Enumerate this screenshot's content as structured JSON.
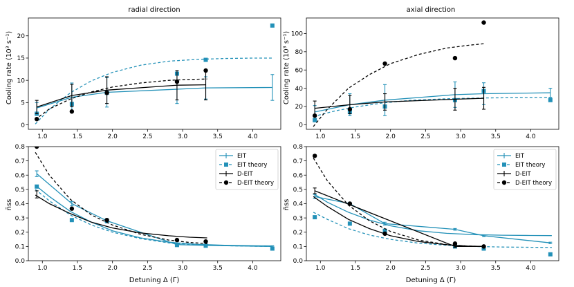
{
  "colors": {
    "eit": "#2391b8",
    "deit": "#000000"
  },
  "chart_data": [
    {
      "type": "line",
      "title": "radial direction",
      "xlabel": "",
      "ylabel": "Cooling rate (10³ s⁻¹)",
      "xlim": [
        0.8,
        4.4
      ],
      "ylim": [
        -1,
        24
      ],
      "xticks": [
        "1.0",
        "1.5",
        "2.0",
        "2.5",
        "3.0",
        "3.5",
        "4.0"
      ],
      "yticks": [
        "0",
        "5",
        "10",
        "15",
        "20"
      ],
      "series": [
        {
          "name": "EIT",
          "kind": "errorbar",
          "color": "eit",
          "linestyle": "solid",
          "x": [
            0.92,
            1.42,
            1.92,
            2.92,
            3.33,
            4.28
          ],
          "y": [
            3.8,
            6.2,
            7.3,
            8.0,
            8.3,
            8.4
          ],
          "err": [
            1.2,
            3.2,
            3.3,
            3.2,
            2.5,
            2.9
          ]
        },
        {
          "name": "EIT theory",
          "kind": "markers",
          "marker": "square",
          "color": "eit",
          "x": [
            0.92,
            1.42,
            1.92,
            2.92,
            3.33,
            4.28
          ],
          "y": [
            2.5,
            4.7,
            7.2,
            11.5,
            14.6,
            22.3
          ]
        },
        {
          "name": "EIT theory curve",
          "kind": "line",
          "color": "eit",
          "linestyle": "dashed",
          "x": [
            0.9,
            1.1,
            1.4,
            1.7,
            2.0,
            2.4,
            2.8,
            3.2,
            3.6,
            4.0,
            4.3
          ],
          "y": [
            0.2,
            3.5,
            7.2,
            9.9,
            11.8,
            13.4,
            14.3,
            14.7,
            14.9,
            15.0,
            15.0
          ]
        },
        {
          "name": "D-EIT",
          "kind": "errorbar",
          "color": "deit",
          "linestyle": "solid",
          "x": [
            0.92,
            1.42,
            1.92,
            2.92,
            3.33
          ],
          "y": [
            4.0,
            6.6,
            7.8,
            8.9,
            9.0
          ],
          "err": [
            1.5,
            2.5,
            3.0,
            3.3,
            3.4
          ]
        },
        {
          "name": "D-EIT theory",
          "kind": "markers",
          "marker": "circle",
          "color": "deit",
          "x": [
            0.92,
            1.42,
            1.92,
            2.92,
            3.33
          ],
          "y": [
            1.3,
            3.0,
            7.2,
            9.7,
            12.2
          ]
        },
        {
          "name": "D-EIT theory curve",
          "kind": "line",
          "color": "deit",
          "linestyle": "dashed",
          "x": [
            0.9,
            1.1,
            1.4,
            1.7,
            2.0,
            2.4,
            2.8,
            3.1,
            3.35
          ],
          "y": [
            1.2,
            3.6,
            5.8,
            7.4,
            8.5,
            9.4,
            10.0,
            10.2,
            10.3
          ]
        }
      ]
    },
    {
      "type": "line",
      "title": "axial direction",
      "xlabel": "",
      "ylabel": "Cooling rate (10³ s⁻¹)",
      "xlim": [
        0.8,
        4.4
      ],
      "ylim": [
        -5,
        117
      ],
      "xticks": [
        "1.0",
        "1.5",
        "2.0",
        "2.5",
        "3.0",
        "3.5",
        "4.0"
      ],
      "yticks": [
        "0",
        "20",
        "40",
        "60",
        "80",
        "100"
      ],
      "series": [
        {
          "name": "EIT",
          "kind": "errorbar",
          "color": "eit",
          "linestyle": "solid",
          "x": [
            0.92,
            1.42,
            1.92,
            2.92,
            3.33,
            4.28
          ],
          "y": [
            14.0,
            22.0,
            27.0,
            33.0,
            34.0,
            35.0
          ],
          "err": [
            7.0,
            12.0,
            17.0,
            14.0,
            12.0,
            5.0
          ]
        },
        {
          "name": "EIT theory",
          "kind": "markers",
          "marker": "square",
          "color": "eit",
          "x": [
            0.92,
            1.42,
            1.92,
            2.92,
            3.33,
            4.28
          ],
          "y": [
            5.0,
            14.0,
            20.0,
            27.0,
            37.0,
            27.0
          ]
        },
        {
          "name": "EIT theory curve",
          "kind": "line",
          "color": "eit",
          "linestyle": "dashed",
          "x": [
            0.9,
            1.2,
            1.5,
            1.9,
            2.3,
            2.8,
            3.3,
            3.8,
            4.3
          ],
          "y": [
            9.0,
            15.0,
            19.5,
            24.0,
            26.8,
            28.5,
            29.3,
            29.7,
            29.9
          ]
        },
        {
          "name": "D-EIT",
          "kind": "errorbar",
          "color": "deit",
          "linestyle": "solid",
          "x": [
            0.92,
            1.42,
            1.92,
            2.92,
            3.33
          ],
          "y": [
            18.0,
            22.0,
            25.0,
            28.0,
            29.0
          ],
          "err": [
            8.0,
            10.0,
            9.0,
            12.0,
            12.0
          ]
        },
        {
          "name": "D-EIT theory",
          "kind": "markers",
          "marker": "circle",
          "color": "deit",
          "x": [
            0.92,
            1.42,
            1.92,
            2.92,
            3.33
          ],
          "y": [
            10.0,
            17.0,
            67.0,
            73.0,
            112.0
          ]
        },
        {
          "name": "D-EIT theory curve",
          "kind": "line",
          "color": "deit",
          "linestyle": "dashed",
          "x": [
            0.9,
            1.1,
            1.4,
            1.7,
            2.0,
            2.4,
            2.8,
            3.1,
            3.35
          ],
          "y": [
            -2.0,
            17.0,
            40.0,
            55.0,
            67.0,
            77.0,
            84.0,
            87.0,
            89.0
          ]
        }
      ]
    },
    {
      "type": "line",
      "title": "",
      "xlabel": "Detuning Δ (Γ)",
      "ylabel": "n̄ss",
      "xlim": [
        0.8,
        4.4
      ],
      "ylim": [
        0.0,
        0.8
      ],
      "xticks": [
        "1.0",
        "1.5",
        "2.0",
        "2.5",
        "3.0",
        "3.5",
        "4.0"
      ],
      "yticks": [
        "0.0",
        "0.1",
        "0.2",
        "0.3",
        "0.4",
        "0.5",
        "0.6",
        "0.7",
        "0.8"
      ],
      "legend": {
        "placement": "top-right",
        "entries": [
          "EIT",
          "EIT theory",
          "D-EIT",
          "D-EIT theory"
        ]
      },
      "series": [
        {
          "name": "EIT",
          "kind": "errorbar",
          "color": "eit",
          "linestyle": "solid",
          "x": [
            0.92,
            1.42,
            1.92,
            2.92,
            3.33,
            4.28
          ],
          "y": [
            0.61,
            0.4,
            0.28,
            0.113,
            0.107,
            0.1
          ],
          "err": [
            0.02,
            0.015,
            0.015,
            0.01,
            0.01,
            0.005
          ]
        },
        {
          "name": "EIT curve",
          "kind": "line",
          "color": "eit",
          "linestyle": "solid",
          "x": [
            0.9,
            1.1,
            1.4,
            1.7,
            2.0,
            2.4,
            2.8,
            3.2,
            3.6,
            4.0,
            4.3
          ],
          "y": [
            0.53,
            0.45,
            0.345,
            0.27,
            0.21,
            0.16,
            0.13,
            0.115,
            0.108,
            0.105,
            0.104
          ]
        },
        {
          "name": "EIT theory",
          "kind": "markers",
          "marker": "square",
          "color": "eit",
          "x": [
            0.92,
            1.42,
            1.92,
            2.92,
            3.33,
            4.28
          ],
          "y": [
            0.52,
            0.285,
            0.28,
            0.11,
            0.105,
            0.085
          ]
        },
        {
          "name": "EIT theory curve",
          "kind": "line",
          "color": "eit",
          "linestyle": "dashed",
          "x": [
            0.9,
            1.1,
            1.4,
            1.7,
            2.0,
            2.4,
            2.8,
            3.2,
            3.6,
            4.0,
            4.3
          ],
          "y": [
            0.5,
            0.42,
            0.32,
            0.25,
            0.2,
            0.155,
            0.125,
            0.112,
            0.105,
            0.102,
            0.1
          ]
        },
        {
          "name": "D-EIT",
          "kind": "errorbar",
          "color": "deit",
          "linestyle": "solid",
          "x": [
            0.92
          ],
          "y": [
            0.465
          ],
          "err": [
            0.025
          ]
        },
        {
          "name": "D-EIT curve",
          "kind": "line",
          "color": "deit",
          "linestyle": "solid",
          "x": [
            0.9,
            1.1,
            1.4,
            1.7,
            2.0,
            2.4,
            2.8,
            3.1,
            3.35
          ],
          "y": [
            0.46,
            0.4,
            0.33,
            0.27,
            0.23,
            0.195,
            0.175,
            0.165,
            0.16
          ]
        },
        {
          "name": "D-EIT theory",
          "kind": "markers",
          "marker": "circle",
          "color": "deit",
          "x": [
            0.92,
            1.42,
            1.92,
            2.92,
            3.33
          ],
          "y": [
            0.8,
            0.365,
            0.285,
            0.145,
            0.135
          ]
        },
        {
          "name": "D-EIT theory curve",
          "kind": "line",
          "color": "deit",
          "linestyle": "dashed",
          "x": [
            0.9,
            1.1,
            1.4,
            1.7,
            2.0,
            2.4,
            2.8,
            3.1,
            3.35
          ],
          "y": [
            0.76,
            0.6,
            0.43,
            0.32,
            0.25,
            0.185,
            0.145,
            0.128,
            0.12
          ]
        }
      ]
    },
    {
      "type": "line",
      "title": "",
      "xlabel": "Detuning Δ (Γ)",
      "ylabel": "n̄ss",
      "xlim": [
        0.8,
        4.4
      ],
      "ylim": [
        0.0,
        0.8
      ],
      "xticks": [
        "1.0",
        "1.5",
        "2.0",
        "2.5",
        "3.0",
        "3.5",
        "4.0"
      ],
      "yticks": [
        "0.0",
        "0.1",
        "0.2",
        "0.3",
        "0.4",
        "0.5",
        "0.6",
        "0.7",
        "0.8"
      ],
      "legend": {
        "placement": "top-right",
        "entries": [
          "EIT",
          "EIT theory",
          "D-EIT",
          "D-EIT theory"
        ]
      },
      "series": [
        {
          "name": "EIT",
          "kind": "errorbar",
          "color": "eit",
          "linestyle": "solid",
          "x": [
            0.92,
            1.42,
            1.92,
            2.92,
            3.33,
            4.28
          ],
          "y": [
            0.45,
            0.4,
            0.26,
            0.22,
            0.175,
            0.125
          ],
          "err": [
            0.015,
            0.01,
            0.01,
            0.006,
            0.006,
            0.005
          ]
        },
        {
          "name": "EIT curve",
          "kind": "line",
          "color": "eit",
          "linestyle": "solid",
          "x": [
            0.9,
            1.1,
            1.4,
            1.7,
            2.0,
            2.4,
            2.8,
            3.2,
            3.6,
            4.0,
            4.3
          ],
          "y": [
            0.47,
            0.41,
            0.34,
            0.285,
            0.245,
            0.21,
            0.192,
            0.183,
            0.179,
            0.177,
            0.176
          ]
        },
        {
          "name": "EIT theory",
          "kind": "markers",
          "marker": "square",
          "color": "eit",
          "x": [
            0.92,
            1.42,
            1.92,
            2.92,
            3.33,
            4.28
          ],
          "y": [
            0.305,
            0.26,
            0.21,
            0.1,
            0.085,
            0.045
          ]
        },
        {
          "name": "EIT theory curve",
          "kind": "line",
          "color": "eit",
          "linestyle": "dashed",
          "x": [
            0.9,
            1.1,
            1.4,
            1.7,
            2.0,
            2.4,
            2.8,
            3.2,
            3.6,
            4.0,
            4.3
          ],
          "y": [
            0.34,
            0.29,
            0.225,
            0.18,
            0.15,
            0.123,
            0.108,
            0.1,
            0.096,
            0.094,
            0.093
          ]
        },
        {
          "name": "D-EIT",
          "kind": "errorbar",
          "color": "deit",
          "linestyle": "solid",
          "x": [
            0.92,
            2.92,
            3.33
          ],
          "y": [
            0.49,
            0.1,
            0.1
          ],
          "err": [
            0.02,
            0.008,
            0.008
          ]
        },
        {
          "name": "D-EIT curve",
          "kind": "line",
          "color": "deit",
          "linestyle": "solid",
          "x": [
            0.9,
            1.1,
            1.4,
            1.7,
            2.0,
            2.4,
            2.8,
            3.1,
            3.35
          ],
          "y": [
            0.45,
            0.38,
            0.29,
            0.225,
            0.175,
            0.135,
            0.112,
            0.103,
            0.1
          ]
        },
        {
          "name": "D-EIT theory",
          "kind": "markers",
          "marker": "circle",
          "color": "deit",
          "x": [
            0.92,
            1.42,
            1.92,
            2.92,
            3.33
          ],
          "y": [
            0.735,
            0.4,
            0.19,
            0.12,
            0.1
          ]
        },
        {
          "name": "D-EIT theory curve",
          "kind": "line",
          "color": "deit",
          "linestyle": "dashed",
          "x": [
            0.9,
            1.1,
            1.4,
            1.7,
            2.0,
            2.4,
            2.8,
            3.1,
            3.35
          ],
          "y": [
            0.72,
            0.56,
            0.39,
            0.28,
            0.205,
            0.145,
            0.113,
            0.103,
            0.1
          ]
        }
      ]
    }
  ]
}
